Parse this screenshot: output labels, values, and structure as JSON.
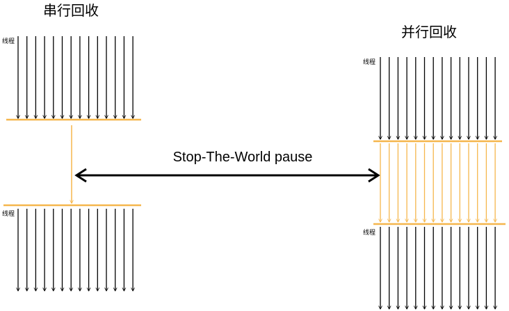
{
  "serial": {
    "title": "串行回收",
    "thread_label_top": "线程",
    "thread_label_bottom": "线程"
  },
  "parallel": {
    "title": "并行回收",
    "thread_label_top": "线程",
    "thread_label_bottom": "线程"
  },
  "pause_label": "Stop-The-World pause",
  "colors": {
    "thread": "#000000",
    "gc": "#f5b64c"
  }
}
